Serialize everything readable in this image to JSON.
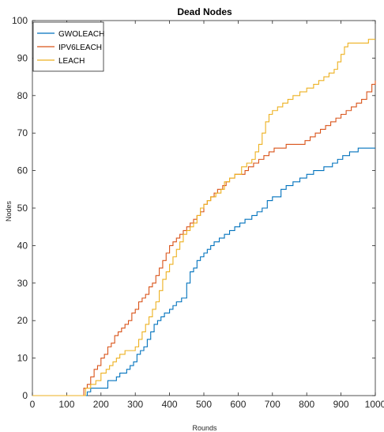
{
  "chart_data": {
    "type": "line",
    "title": "Dead Nodes",
    "xlabel": "Rounds",
    "ylabel": "Nodes",
    "xlim": [
      0,
      1000
    ],
    "ylim": [
      0,
      100
    ],
    "xticks": [
      0,
      100,
      200,
      300,
      400,
      500,
      600,
      700,
      800,
      900,
      1000
    ],
    "yticks": [
      0,
      10,
      20,
      30,
      40,
      50,
      60,
      70,
      80,
      90,
      100
    ],
    "grid": false,
    "legend_position": "top-left",
    "step": true,
    "series": [
      {
        "name": "GWOLEACH",
        "color": "#0072BD",
        "points": [
          [
            0,
            0
          ],
          [
            150,
            0
          ],
          [
            160,
            1
          ],
          [
            170,
            2
          ],
          [
            210,
            2
          ],
          [
            220,
            4
          ],
          [
            235,
            4
          ],
          [
            245,
            5
          ],
          [
            255,
            6
          ],
          [
            265,
            6
          ],
          [
            275,
            7
          ],
          [
            285,
            8
          ],
          [
            295,
            9
          ],
          [
            305,
            11
          ],
          [
            315,
            12
          ],
          [
            325,
            13
          ],
          [
            335,
            15
          ],
          [
            345,
            17
          ],
          [
            355,
            19
          ],
          [
            365,
            20
          ],
          [
            375,
            21
          ],
          [
            385,
            22
          ],
          [
            400,
            23
          ],
          [
            410,
            24
          ],
          [
            420,
            25
          ],
          [
            435,
            26
          ],
          [
            450,
            30
          ],
          [
            460,
            33
          ],
          [
            470,
            34
          ],
          [
            480,
            36
          ],
          [
            490,
            37
          ],
          [
            500,
            38
          ],
          [
            510,
            39
          ],
          [
            520,
            40
          ],
          [
            530,
            41
          ],
          [
            545,
            42
          ],
          [
            560,
            43
          ],
          [
            575,
            44
          ],
          [
            590,
            45
          ],
          [
            605,
            46
          ],
          [
            620,
            47
          ],
          [
            640,
            48
          ],
          [
            655,
            49
          ],
          [
            670,
            50
          ],
          [
            685,
            52
          ],
          [
            700,
            53
          ],
          [
            725,
            55
          ],
          [
            740,
            56
          ],
          [
            760,
            57
          ],
          [
            780,
            58
          ],
          [
            800,
            59
          ],
          [
            820,
            60
          ],
          [
            850,
            61
          ],
          [
            875,
            62
          ],
          [
            890,
            63
          ],
          [
            905,
            64
          ],
          [
            925,
            65
          ],
          [
            950,
            66
          ],
          [
            1000,
            66
          ]
        ]
      },
      {
        "name": "IPV6LEACH",
        "color": "#D95319",
        "points": [
          [
            0,
            0
          ],
          [
            140,
            0
          ],
          [
            150,
            2
          ],
          [
            160,
            3
          ],
          [
            170,
            5
          ],
          [
            180,
            7
          ],
          [
            190,
            8
          ],
          [
            200,
            10
          ],
          [
            210,
            11
          ],
          [
            220,
            13
          ],
          [
            230,
            14
          ],
          [
            240,
            16
          ],
          [
            250,
            17
          ],
          [
            260,
            18
          ],
          [
            270,
            19
          ],
          [
            280,
            20
          ],
          [
            290,
            22
          ],
          [
            300,
            23
          ],
          [
            310,
            25
          ],
          [
            320,
            26
          ],
          [
            330,
            27
          ],
          [
            340,
            29
          ],
          [
            350,
            30
          ],
          [
            360,
            32
          ],
          [
            370,
            34
          ],
          [
            380,
            36
          ],
          [
            390,
            38
          ],
          [
            400,
            40
          ],
          [
            410,
            41
          ],
          [
            420,
            42
          ],
          [
            430,
            43
          ],
          [
            440,
            44
          ],
          [
            450,
            45
          ],
          [
            460,
            46
          ],
          [
            470,
            47
          ],
          [
            480,
            48
          ],
          [
            490,
            49
          ],
          [
            500,
            51
          ],
          [
            510,
            52
          ],
          [
            520,
            53
          ],
          [
            530,
            54
          ],
          [
            540,
            55
          ],
          [
            555,
            56
          ],
          [
            565,
            57
          ],
          [
            575,
            58
          ],
          [
            590,
            59
          ],
          [
            605,
            59
          ],
          [
            620,
            60
          ],
          [
            630,
            61
          ],
          [
            645,
            62
          ],
          [
            660,
            63
          ],
          [
            675,
            64
          ],
          [
            690,
            65
          ],
          [
            705,
            66
          ],
          [
            725,
            66
          ],
          [
            740,
            67
          ],
          [
            780,
            67
          ],
          [
            795,
            68
          ],
          [
            810,
            69
          ],
          [
            825,
            70
          ],
          [
            840,
            71
          ],
          [
            855,
            72
          ],
          [
            870,
            73
          ],
          [
            885,
            74
          ],
          [
            900,
            75
          ],
          [
            915,
            76
          ],
          [
            930,
            77
          ],
          [
            945,
            78
          ],
          [
            960,
            79
          ],
          [
            975,
            81
          ],
          [
            990,
            83
          ],
          [
            1000,
            84
          ]
        ]
      },
      {
        "name": "LEACH",
        "color": "#EDB120",
        "points": [
          [
            0,
            0
          ],
          [
            145,
            0
          ],
          [
            155,
            2
          ],
          [
            170,
            3
          ],
          [
            185,
            4
          ],
          [
            200,
            6
          ],
          [
            215,
            7
          ],
          [
            225,
            8
          ],
          [
            235,
            9
          ],
          [
            245,
            10
          ],
          [
            255,
            11
          ],
          [
            270,
            12
          ],
          [
            300,
            13
          ],
          [
            310,
            15
          ],
          [
            320,
            17
          ],
          [
            330,
            19
          ],
          [
            340,
            21
          ],
          [
            350,
            23
          ],
          [
            360,
            25
          ],
          [
            370,
            28
          ],
          [
            380,
            31
          ],
          [
            390,
            33
          ],
          [
            400,
            35
          ],
          [
            410,
            37
          ],
          [
            420,
            39
          ],
          [
            430,
            41
          ],
          [
            440,
            43
          ],
          [
            450,
            44
          ],
          [
            460,
            45
          ],
          [
            470,
            46
          ],
          [
            480,
            48
          ],
          [
            490,
            50
          ],
          [
            500,
            51
          ],
          [
            510,
            52
          ],
          [
            520,
            53
          ],
          [
            535,
            54
          ],
          [
            550,
            55
          ],
          [
            560,
            57
          ],
          [
            575,
            58
          ],
          [
            590,
            59
          ],
          [
            610,
            61
          ],
          [
            625,
            62
          ],
          [
            640,
            63
          ],
          [
            650,
            65
          ],
          [
            660,
            67
          ],
          [
            670,
            70
          ],
          [
            680,
            73
          ],
          [
            690,
            75
          ],
          [
            700,
            76
          ],
          [
            715,
            77
          ],
          [
            730,
            78
          ],
          [
            745,
            79
          ],
          [
            760,
            80
          ],
          [
            780,
            81
          ],
          [
            800,
            82
          ],
          [
            820,
            83
          ],
          [
            835,
            84
          ],
          [
            850,
            85
          ],
          [
            865,
            86
          ],
          [
            880,
            87
          ],
          [
            890,
            89
          ],
          [
            900,
            91
          ],
          [
            910,
            93
          ],
          [
            920,
            94
          ],
          [
            970,
            94
          ],
          [
            980,
            95
          ],
          [
            1000,
            95
          ]
        ]
      }
    ]
  }
}
